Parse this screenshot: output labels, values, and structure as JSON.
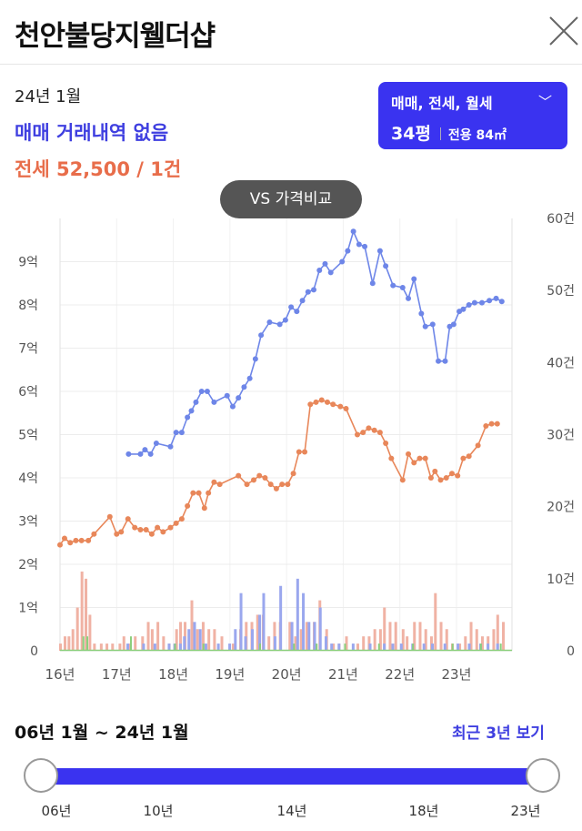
{
  "header": {
    "title": "천안불당지웰더샵"
  },
  "info": {
    "date": "24년 1월",
    "trade": "매매 거래내역 없음",
    "rent": "전세 52,500 / 1건"
  },
  "type_selector": {
    "types": "매매, 전세, 월세",
    "size": "34평",
    "area": "전용 84㎡"
  },
  "vs_button": {
    "label": "VS 가격비교"
  },
  "range": {
    "label": "06년 1월 ~ 24년 1월",
    "recent_label": "최근 3년 보기",
    "ticks": [
      "06년",
      "10년",
      "14년",
      "18년",
      "23년"
    ]
  },
  "colors": {
    "trade": "#6e86e8",
    "rent": "#e8875a",
    "accent": "#3a33f0",
    "vol_trade": "#9aa7ee",
    "vol_rent": "#f0b2a4",
    "vol_monthly": "#8bcf7c"
  },
  "chart_data": {
    "type": "line",
    "x_range": [
      2016.0,
      2023.98
    ],
    "xticks": [
      16,
      17,
      18,
      19,
      20,
      21,
      22,
      23
    ],
    "xtick_labels": [
      "16년",
      "17년",
      "18년",
      "19년",
      "20년",
      "21년",
      "22년",
      "23년"
    ],
    "ylim_left": [
      0,
      10
    ],
    "yticks_left": [
      "0",
      "1억",
      "2억",
      "3억",
      "4억",
      "5억",
      "6억",
      "7억",
      "8억",
      "9억"
    ],
    "ylim_right": [
      0,
      60
    ],
    "yticks_right": [
      "0",
      "10건",
      "20건",
      "30건",
      "40건",
      "50건",
      "60건"
    ],
    "series": [
      {
        "key": "trade",
        "points": [
          [
            2017.21,
            4.55
          ],
          [
            2017.42,
            4.55
          ],
          [
            2017.5,
            4.65
          ],
          [
            2017.6,
            4.55
          ],
          [
            2017.7,
            4.8
          ],
          [
            2017.95,
            4.72
          ],
          [
            2018.05,
            5.05
          ],
          [
            2018.15,
            5.05
          ],
          [
            2018.25,
            5.4
          ],
          [
            2018.32,
            5.55
          ],
          [
            2018.4,
            5.75
          ],
          [
            2018.5,
            6.0
          ],
          [
            2018.6,
            6.0
          ],
          [
            2018.72,
            5.75
          ],
          [
            2018.95,
            5.9
          ],
          [
            2019.05,
            5.65
          ],
          [
            2019.15,
            5.85
          ],
          [
            2019.25,
            6.1
          ],
          [
            2019.35,
            6.3
          ],
          [
            2019.45,
            6.75
          ],
          [
            2019.55,
            7.3
          ],
          [
            2019.7,
            7.6
          ],
          [
            2019.88,
            7.55
          ],
          [
            2019.98,
            7.65
          ],
          [
            2020.08,
            7.95
          ],
          [
            2020.18,
            7.85
          ],
          [
            2020.28,
            8.1
          ],
          [
            2020.38,
            8.3
          ],
          [
            2020.48,
            8.35
          ],
          [
            2020.58,
            8.8
          ],
          [
            2020.68,
            8.95
          ],
          [
            2020.78,
            8.75
          ],
          [
            2020.98,
            9.0
          ],
          [
            2021.08,
            9.25
          ],
          [
            2021.18,
            9.7
          ],
          [
            2021.28,
            9.4
          ],
          [
            2021.38,
            9.35
          ],
          [
            2021.52,
            8.5
          ],
          [
            2021.65,
            9.25
          ],
          [
            2021.75,
            8.9
          ],
          [
            2021.88,
            8.45
          ],
          [
            2022.05,
            8.4
          ],
          [
            2022.15,
            8.15
          ],
          [
            2022.25,
            8.6
          ],
          [
            2022.38,
            7.8
          ],
          [
            2022.45,
            7.5
          ],
          [
            2022.58,
            7.55
          ],
          [
            2022.68,
            6.7
          ],
          [
            2022.8,
            6.7
          ],
          [
            2022.88,
            7.5
          ],
          [
            2022.95,
            7.55
          ],
          [
            2023.05,
            7.85
          ],
          [
            2023.12,
            7.9
          ],
          [
            2023.22,
            8.0
          ],
          [
            2023.32,
            8.05
          ],
          [
            2023.45,
            8.05
          ],
          [
            2023.58,
            8.1
          ],
          [
            2023.7,
            8.15
          ],
          [
            2023.8,
            8.08
          ]
        ]
      },
      {
        "key": "rent",
        "points": [
          [
            2016.0,
            2.45
          ],
          [
            2016.08,
            2.6
          ],
          [
            2016.18,
            2.5
          ],
          [
            2016.28,
            2.55
          ],
          [
            2016.38,
            2.55
          ],
          [
            2016.5,
            2.55
          ],
          [
            2016.6,
            2.7
          ],
          [
            2016.88,
            3.1
          ],
          [
            2017.0,
            2.7
          ],
          [
            2017.08,
            2.75
          ],
          [
            2017.2,
            3.05
          ],
          [
            2017.32,
            2.85
          ],
          [
            2017.42,
            2.8
          ],
          [
            2017.52,
            2.8
          ],
          [
            2017.62,
            2.7
          ],
          [
            2017.72,
            2.85
          ],
          [
            2017.82,
            2.75
          ],
          [
            2017.95,
            2.85
          ],
          [
            2018.05,
            2.95
          ],
          [
            2018.15,
            3.05
          ],
          [
            2018.25,
            3.35
          ],
          [
            2018.35,
            3.65
          ],
          [
            2018.45,
            3.65
          ],
          [
            2018.55,
            3.3
          ],
          [
            2018.62,
            3.65
          ],
          [
            2018.72,
            3.9
          ],
          [
            2018.82,
            3.85
          ],
          [
            2019.15,
            4.05
          ],
          [
            2019.3,
            3.85
          ],
          [
            2019.42,
            3.95
          ],
          [
            2019.52,
            4.05
          ],
          [
            2019.62,
            4.0
          ],
          [
            2019.72,
            3.85
          ],
          [
            2019.82,
            3.75
          ],
          [
            2019.92,
            3.85
          ],
          [
            2020.02,
            3.85
          ],
          [
            2020.12,
            4.1
          ],
          [
            2020.22,
            4.6
          ],
          [
            2020.32,
            4.6
          ],
          [
            2020.42,
            5.7
          ],
          [
            2020.52,
            5.75
          ],
          [
            2020.62,
            5.8
          ],
          [
            2020.72,
            5.75
          ],
          [
            2020.82,
            5.7
          ],
          [
            2020.95,
            5.65
          ],
          [
            2021.05,
            5.6
          ],
          [
            2021.25,
            5.0
          ],
          [
            2021.35,
            5.05
          ],
          [
            2021.45,
            5.15
          ],
          [
            2021.55,
            5.1
          ],
          [
            2021.65,
            5.05
          ],
          [
            2021.75,
            4.8
          ],
          [
            2021.85,
            4.45
          ],
          [
            2022.05,
            3.95
          ],
          [
            2022.15,
            4.55
          ],
          [
            2022.25,
            4.35
          ],
          [
            2022.35,
            4.45
          ],
          [
            2022.45,
            4.45
          ],
          [
            2022.55,
            4.0
          ],
          [
            2022.62,
            4.15
          ],
          [
            2022.72,
            3.95
          ],
          [
            2022.82,
            4.0
          ],
          [
            2022.92,
            4.1
          ],
          [
            2023.02,
            4.05
          ],
          [
            2023.12,
            4.45
          ],
          [
            2023.22,
            4.5
          ],
          [
            2023.38,
            4.75
          ],
          [
            2023.52,
            5.2
          ],
          [
            2023.62,
            5.25
          ],
          [
            2023.72,
            5.25
          ]
        ]
      }
    ],
    "volume": {
      "trade": [
        [
          2017.22,
          1
        ],
        [
          2017.5,
          1
        ],
        [
          2017.7,
          1
        ],
        [
          2017.95,
          1
        ],
        [
          2018.05,
          1
        ],
        [
          2018.15,
          1
        ],
        [
          2018.22,
          2
        ],
        [
          2018.3,
          3
        ],
        [
          2018.4,
          4
        ],
        [
          2018.5,
          3
        ],
        [
          2018.6,
          1
        ],
        [
          2018.82,
          1
        ],
        [
          2019.02,
          1
        ],
        [
          2019.12,
          3
        ],
        [
          2019.22,
          8
        ],
        [
          2019.3,
          2
        ],
        [
          2019.42,
          3
        ],
        [
          2019.55,
          5
        ],
        [
          2019.62,
          8
        ],
        [
          2019.82,
          2
        ],
        [
          2019.92,
          9
        ],
        [
          2020.12,
          4
        ],
        [
          2020.22,
          10
        ],
        [
          2020.32,
          8
        ],
        [
          2020.42,
          4
        ],
        [
          2020.52,
          4
        ],
        [
          2020.62,
          6
        ],
        [
          2020.72,
          2
        ],
        [
          2020.82,
          1
        ],
        [
          2020.95,
          1
        ],
        [
          2021.2,
          1
        ],
        [
          2021.5,
          1
        ],
        [
          2021.75,
          1
        ],
        [
          2021.9,
          1
        ],
        [
          2022.05,
          1
        ],
        [
          2022.25,
          1
        ],
        [
          2022.45,
          1
        ],
        [
          2022.6,
          1
        ],
        [
          2022.82,
          1
        ],
        [
          2023.05,
          1
        ],
        [
          2023.25,
          1
        ],
        [
          2023.45,
          1
        ],
        [
          2023.58,
          1
        ],
        [
          2023.75,
          1
        ]
      ],
      "rent": [
        [
          2016.0,
          1
        ],
        [
          2016.08,
          2
        ],
        [
          2016.15,
          2
        ],
        [
          2016.22,
          3
        ],
        [
          2016.3,
          6
        ],
        [
          2016.38,
          11
        ],
        [
          2016.45,
          10
        ],
        [
          2016.52,
          5
        ],
        [
          2016.6,
          1
        ],
        [
          2016.72,
          1
        ],
        [
          2016.82,
          1
        ],
        [
          2016.92,
          1
        ],
        [
          2017.05,
          1
        ],
        [
          2017.12,
          2
        ],
        [
          2017.22,
          1
        ],
        [
          2017.32,
          2
        ],
        [
          2017.45,
          2
        ],
        [
          2017.55,
          4
        ],
        [
          2017.62,
          3
        ],
        [
          2017.72,
          4
        ],
        [
          2017.82,
          2
        ],
        [
          2017.92,
          1
        ],
        [
          2018.05,
          3
        ],
        [
          2018.12,
          4
        ],
        [
          2018.2,
          4
        ],
        [
          2018.32,
          7
        ],
        [
          2018.42,
          3
        ],
        [
          2018.52,
          4
        ],
        [
          2018.62,
          3
        ],
        [
          2018.72,
          3
        ],
        [
          2018.85,
          2
        ],
        [
          2019.05,
          1
        ],
        [
          2019.18,
          3
        ],
        [
          2019.28,
          4
        ],
        [
          2019.38,
          4
        ],
        [
          2019.48,
          5
        ],
        [
          2019.58,
          5
        ],
        [
          2019.68,
          2
        ],
        [
          2019.78,
          4
        ],
        [
          2019.88,
          4
        ],
        [
          2020.05,
          4
        ],
        [
          2020.15,
          2
        ],
        [
          2020.25,
          3
        ],
        [
          2020.35,
          4
        ],
        [
          2020.48,
          4
        ],
        [
          2020.58,
          7
        ],
        [
          2020.7,
          3
        ],
        [
          2020.82,
          1
        ],
        [
          2020.92,
          1
        ],
        [
          2021.05,
          2
        ],
        [
          2021.25,
          1
        ],
        [
          2021.35,
          2
        ],
        [
          2021.45,
          2
        ],
        [
          2021.55,
          3
        ],
        [
          2021.65,
          3
        ],
        [
          2021.72,
          6
        ],
        [
          2021.82,
          4
        ],
        [
          2021.92,
          4
        ],
        [
          2022.05,
          3
        ],
        [
          2022.12,
          2
        ],
        [
          2022.25,
          4
        ],
        [
          2022.35,
          4
        ],
        [
          2022.45,
          3
        ],
        [
          2022.55,
          2
        ],
        [
          2022.62,
          8
        ],
        [
          2022.72,
          4
        ],
        [
          2022.82,
          3
        ],
        [
          2022.92,
          1
        ],
        [
          2023.05,
          1
        ],
        [
          2023.15,
          2
        ],
        [
          2023.25,
          4
        ],
        [
          2023.35,
          3
        ],
        [
          2023.45,
          2
        ],
        [
          2023.55,
          2
        ],
        [
          2023.65,
          3
        ],
        [
          2023.72,
          5
        ],
        [
          2023.82,
          4
        ]
      ],
      "monthly": [
        [
          2016.38,
          2
        ],
        [
          2016.45,
          2
        ],
        [
          2017.22,
          2
        ],
        [
          2018.0,
          1
        ],
        [
          2018.5,
          1
        ],
        [
          2019.5,
          1
        ],
        [
          2020.1,
          1
        ],
        [
          2020.5,
          1
        ],
        [
          2021.0,
          1
        ],
        [
          2021.6,
          1
        ],
        [
          2022.2,
          1
        ],
        [
          2022.9,
          1
        ],
        [
          2023.4,
          1
        ],
        [
          2023.75,
          1
        ]
      ]
    }
  }
}
